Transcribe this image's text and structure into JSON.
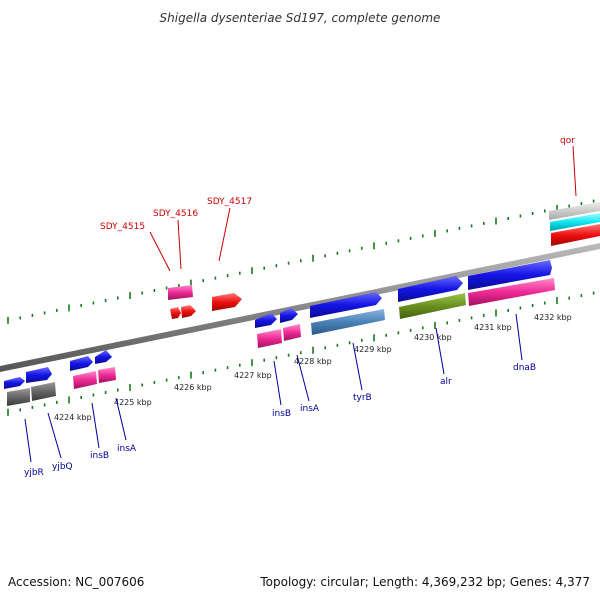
{
  "title": "Shigella dysenteriae Sd197, complete genome",
  "footer": {
    "accession": "Accession: NC_007606",
    "summary": "Topology: circular; Length: 4,369,232 bp; Genes: 4,377"
  },
  "colors": {
    "label_red": "#cc0000",
    "label_blue": "#000099",
    "tick_green": "#1a7a1a",
    "backbone": "#888888"
  },
  "scale": {
    "kbp_labels": [
      "4224 kbp",
      "4225 kbp",
      "4226 kbp",
      "4227 kbp",
      "4228 kbp",
      "4229 kbp",
      "4230 kbp",
      "4231 kbp",
      "4232 kbp"
    ]
  },
  "gene_labels_upper": [
    "SDY_4515",
    "SDY_4516",
    "SDY_4517",
    "qor"
  ],
  "gene_labels_lower": [
    "yjbR",
    "yjbQ",
    "insB",
    "insA",
    "insB",
    "insA",
    "tyrB",
    "alr",
    "dnaB"
  ]
}
